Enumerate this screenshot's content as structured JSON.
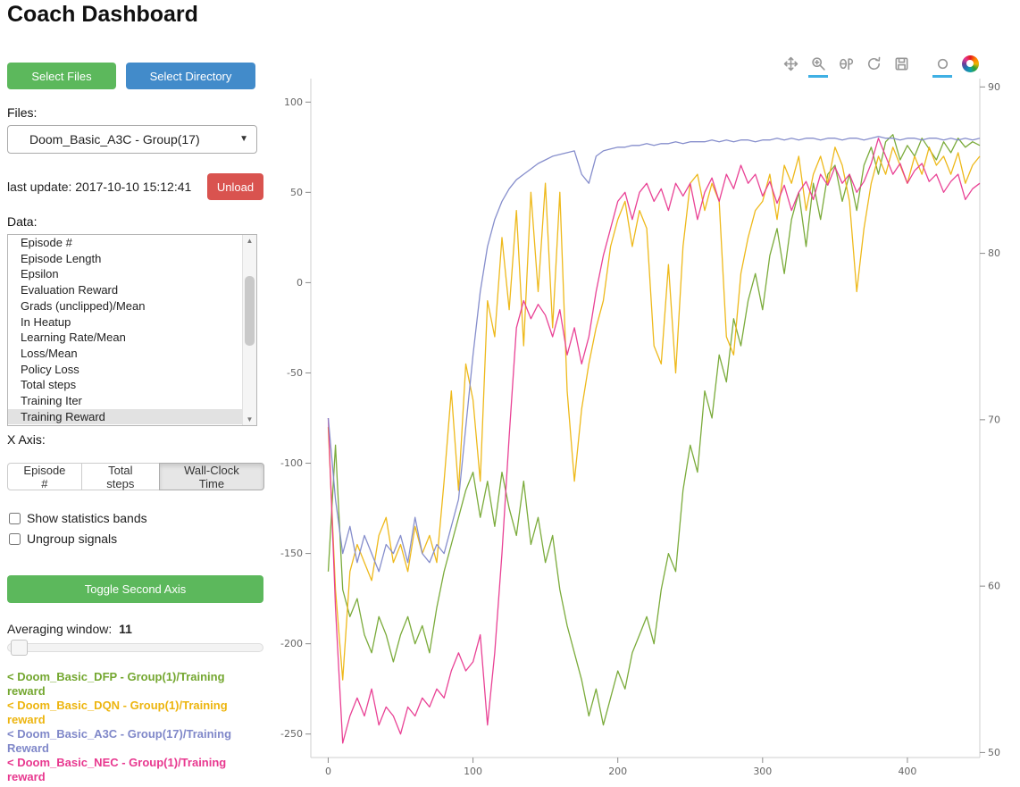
{
  "page": {
    "title": "Coach Dashboard"
  },
  "sidebar": {
    "select_files_label": "Select Files",
    "select_directory_label": "Select Directory",
    "files_label": "Files:",
    "files_dropdown_value": "Doom_Basic_A3C - Group(17)",
    "last_update_label": "last update: 2017-10-10 15:12:41",
    "unload_label": "Unload",
    "data_label": "Data:",
    "data_items": [
      "Episode #",
      "Episode Length",
      "Epsilon",
      "Evaluation Reward",
      "Grads (unclipped)/Mean",
      "In Heatup",
      "Learning Rate/Mean",
      "Loss/Mean",
      "Policy Loss",
      "Total steps",
      "Training Iter",
      "Training Reward"
    ],
    "data_selected": "Training Reward",
    "x_axis_label": "X Axis:",
    "x_axis_options": [
      "Episode #",
      "Total steps",
      "Wall-Clock Time"
    ],
    "x_axis_selected": "Wall-Clock Time",
    "checkboxes": [
      {
        "label": "Show statistics bands",
        "checked": false
      },
      {
        "label": "Ungroup signals",
        "checked": false
      }
    ],
    "toggle_second_axis_label": "Toggle Second Axis",
    "averaging_window_label": "Averaging window:",
    "averaging_window_value": "11",
    "legend": [
      {
        "label": "< Doom_Basic_DFP - Group(1)/Training reward",
        "color": "#74a730"
      },
      {
        "label": "< Doom_Basic_DQN - Group(1)/Training reward",
        "color": "#edb50f"
      },
      {
        "label": "< Doom_Basic_A3C - Group(17)/Training Reward",
        "color": "#8088c9"
      },
      {
        "label": "< Doom_Basic_NEC - Group(1)/Training reward",
        "color": "#e8388f"
      }
    ]
  },
  "icons": {
    "dropdown_caret": "▼",
    "scroll_up": "▲",
    "scroll_down": "▼"
  },
  "toolbar": {
    "tools": [
      {
        "name": "pan",
        "active": false
      },
      {
        "name": "box-zoom",
        "active": true
      },
      {
        "name": "wheel-zoom",
        "active": false
      },
      {
        "name": "reset",
        "active": false
      },
      {
        "name": "save",
        "active": false
      },
      {
        "name": "hover",
        "active": true
      },
      {
        "name": "bokeh-logo",
        "active": false
      }
    ]
  },
  "chart_data": {
    "type": "line",
    "title": "",
    "xlabel": "",
    "ylabel": "",
    "xlim": [
      -12,
      450
    ],
    "ylim_left": [
      -263,
      113
    ],
    "ylim_right": [
      49.7,
      90.5
    ],
    "x_ticks": [
      0,
      100,
      200,
      300,
      400
    ],
    "y_ticks_left": [
      100,
      50,
      0,
      -50,
      -100,
      -150,
      -200,
      -250
    ],
    "y_ticks_right": [
      90,
      80,
      70,
      60,
      50
    ],
    "grid": false,
    "legend_position": "sidebar",
    "x": [
      0,
      5,
      10,
      15,
      20,
      25,
      30,
      35,
      40,
      45,
      50,
      55,
      60,
      65,
      70,
      75,
      80,
      85,
      90,
      95,
      100,
      105,
      110,
      115,
      120,
      125,
      130,
      135,
      140,
      145,
      150,
      155,
      160,
      165,
      170,
      175,
      180,
      185,
      190,
      195,
      200,
      205,
      210,
      215,
      220,
      225,
      230,
      235,
      240,
      245,
      250,
      255,
      260,
      265,
      270,
      275,
      280,
      285,
      290,
      295,
      300,
      305,
      310,
      315,
      320,
      325,
      330,
      335,
      340,
      345,
      350,
      355,
      360,
      365,
      370,
      375,
      380,
      385,
      390,
      395,
      400,
      405,
      410,
      415,
      420,
      425,
      430,
      435,
      440,
      445,
      450
    ],
    "series": [
      {
        "name": "Doom_Basic_DFP - Group(1)/Training reward",
        "color": "#74a730",
        "axis": "left",
        "values": [
          -160,
          -90,
          -170,
          -185,
          -175,
          -195,
          -205,
          -185,
          -195,
          -210,
          -195,
          -185,
          -200,
          -190,
          -205,
          -180,
          -160,
          -145,
          -130,
          -115,
          -105,
          -130,
          -110,
          -135,
          -105,
          -125,
          -140,
          -110,
          -145,
          -130,
          -155,
          -140,
          -170,
          -190,
          -205,
          -220,
          -240,
          -225,
          -245,
          -230,
          -215,
          -225,
          -205,
          -195,
          -185,
          -200,
          -170,
          -150,
          -160,
          -115,
          -90,
          -105,
          -60,
          -75,
          -40,
          -55,
          -20,
          -35,
          -10,
          5,
          -15,
          15,
          30,
          5,
          35,
          50,
          20,
          55,
          35,
          60,
          65,
          45,
          60,
          40,
          65,
          75,
          60,
          78,
          82,
          68,
          76,
          70,
          80,
          74,
          68,
          78,
          72,
          80,
          75,
          78,
          76
        ]
      },
      {
        "name": "Doom_Basic_DQN - Group(1)/Training reward",
        "color": "#edb50f",
        "axis": "left",
        "values": [
          -80,
          -170,
          -220,
          -160,
          -145,
          -155,
          -165,
          -140,
          -130,
          -155,
          -145,
          -160,
          -135,
          -150,
          -140,
          -155,
          -110,
          -60,
          -115,
          -45,
          -65,
          -110,
          -10,
          -30,
          25,
          -15,
          40,
          -35,
          50,
          -5,
          55,
          -25,
          50,
          -60,
          -110,
          -70,
          -45,
          -25,
          -10,
          20,
          35,
          45,
          20,
          40,
          30,
          -35,
          -45,
          10,
          -50,
          20,
          55,
          60,
          40,
          55,
          45,
          -30,
          -40,
          5,
          25,
          40,
          45,
          60,
          35,
          65,
          55,
          70,
          40,
          60,
          70,
          55,
          75,
          65,
          45,
          -5,
          30,
          55,
          70,
          60,
          75,
          65,
          55,
          70,
          60,
          75,
          65,
          70,
          60,
          72,
          55,
          65,
          70
        ]
      },
      {
        "name": "Doom_Basic_NEC - Group(1)/Training reward",
        "color": "#e8388f",
        "axis": "left",
        "values": [
          -75,
          -180,
          -255,
          -240,
          -230,
          -240,
          -225,
          -245,
          -235,
          -240,
          -250,
          -235,
          -240,
          -230,
          -235,
          -225,
          -230,
          -215,
          -205,
          -215,
          -210,
          -195,
          -245,
          -205,
          -150,
          -85,
          -25,
          -10,
          -20,
          -12,
          -18,
          -30,
          -15,
          -40,
          -25,
          -45,
          -30,
          -5,
          15,
          30,
          45,
          50,
          35,
          50,
          55,
          45,
          52,
          40,
          55,
          48,
          55,
          35,
          50,
          58,
          45,
          60,
          52,
          65,
          55,
          60,
          48,
          56,
          44,
          54,
          40,
          50,
          56,
          46,
          60,
          54,
          64,
          55,
          60,
          50,
          56,
          66,
          80,
          70,
          60,
          66,
          55,
          62,
          66,
          56,
          60,
          50,
          56,
          60,
          46,
          52,
          55
        ]
      },
      {
        "name": "Doom_Basic_A3C - Group(17)/Training Reward",
        "color": "#8088c9",
        "axis": "left",
        "values": [
          -75,
          -120,
          -150,
          -135,
          -155,
          -140,
          -150,
          -160,
          -145,
          -150,
          -140,
          -155,
          -130,
          -150,
          -155,
          -145,
          -150,
          -135,
          -120,
          -80,
          -40,
          -5,
          20,
          35,
          45,
          52,
          57,
          60,
          63,
          66,
          68,
          70,
          71,
          72,
          73,
          60,
          55,
          70,
          73,
          74,
          75,
          75,
          76,
          76,
          77,
          76,
          77,
          77,
          78,
          77,
          78,
          78,
          78,
          79,
          78,
          79,
          78,
          79,
          79,
          78,
          79,
          79,
          80,
          79,
          80,
          79,
          80,
          80,
          79,
          80,
          80,
          79,
          80,
          80,
          79,
          80,
          81,
          80,
          80,
          79,
          80,
          80,
          79,
          80,
          80,
          79,
          80,
          79,
          80,
          79,
          80
        ]
      }
    ]
  }
}
